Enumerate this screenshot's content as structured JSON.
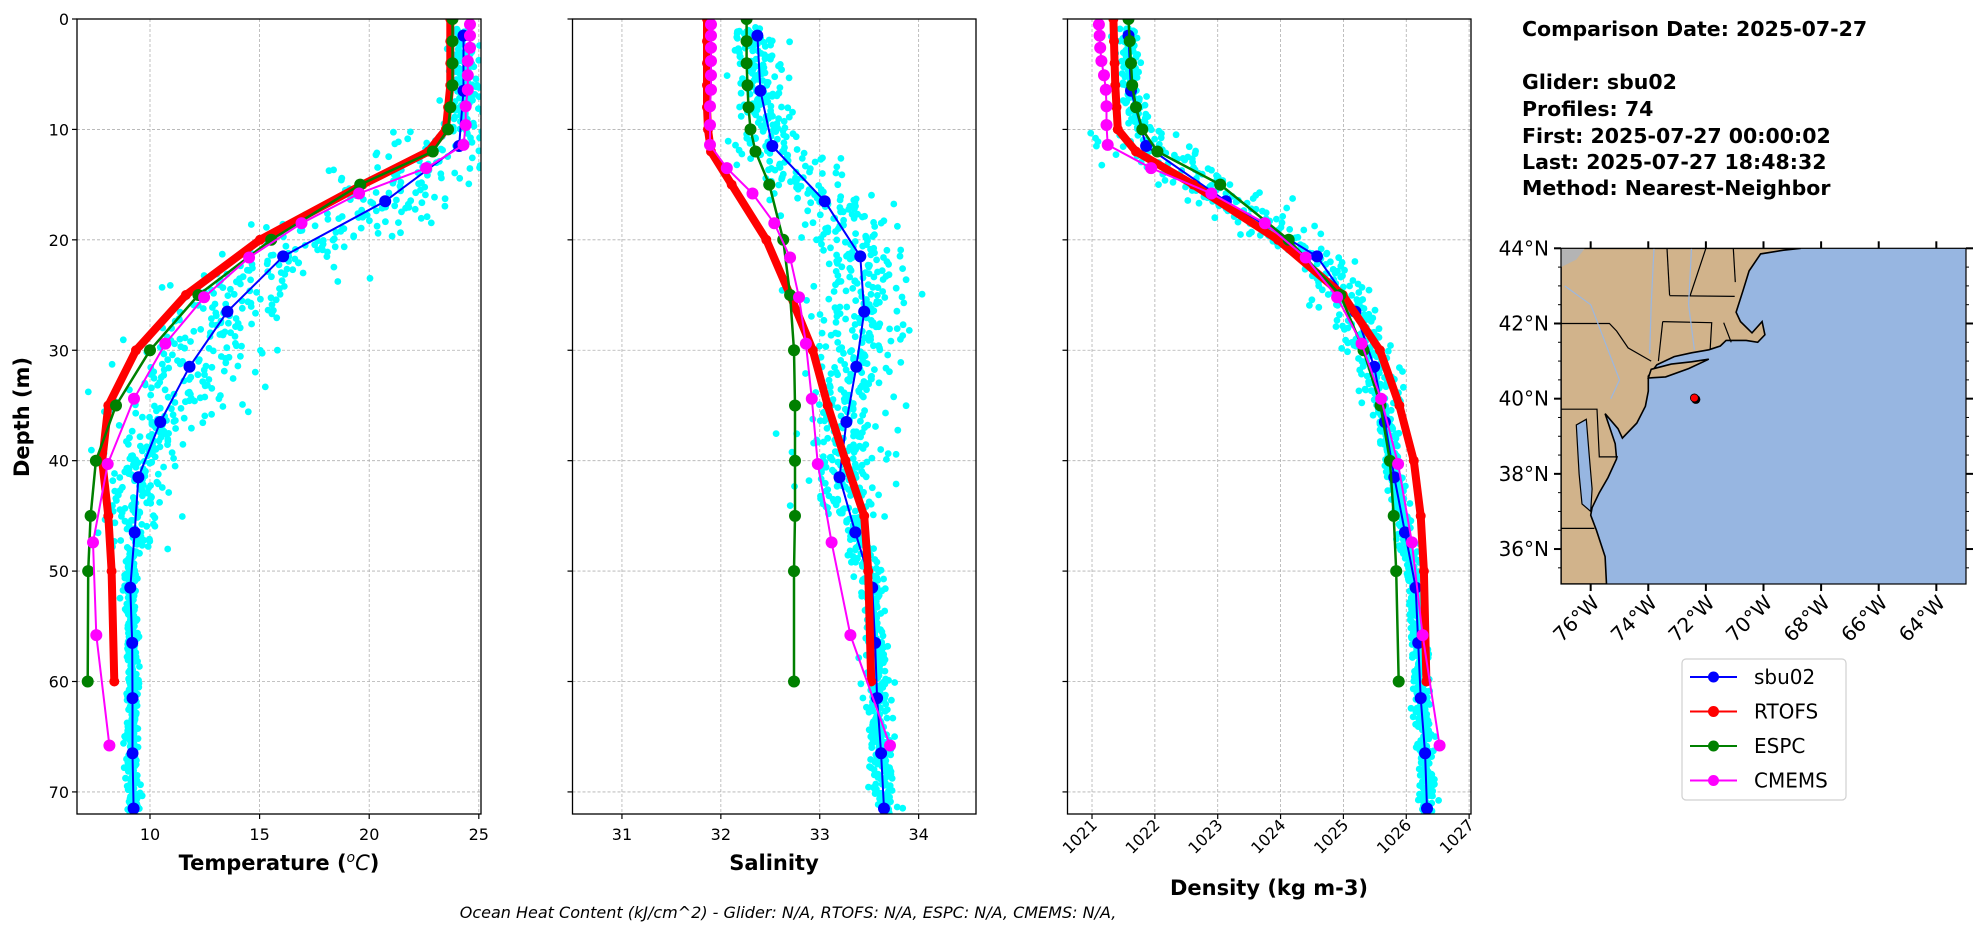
{
  "info": {
    "comparison_date": "Comparison Date: 2025-07-27",
    "glider": "Glider: sbu02",
    "profiles": "Profiles: 74",
    "first": "First: 2025-07-27 00:00:02",
    "last": "Last: 2025-07-27 18:48:32",
    "method": "Method: Nearest-Neighbor"
  },
  "footer": "Ocean Heat Content (kJ/cm^2) - Glider: N/A,  RTOFS: N/A,  ESPC: N/A,  CMEMS: N/A,",
  "legend": {
    "placement": "below map",
    "entries": [
      {
        "label": "sbu02",
        "color": "#0000ff"
      },
      {
        "label": "RTOFS",
        "color": "#ff0000"
      },
      {
        "label": "ESPC",
        "color": "#008000"
      },
      {
        "label": "CMEMS",
        "color": "#ff00ff"
      }
    ]
  },
  "colors": {
    "raw_glider_scatter": "#00ffff",
    "ocean": "#97b6e1",
    "land": "#d1b38b",
    "glider_marker": "#ff0000"
  },
  "chart_data": [
    {
      "type": "line",
      "xlabel_prefix": "Temperature (",
      "xlabel_sup": "o",
      "xlabel_unit": "C",
      "xlabel_suffix": ")",
      "ylabel": "Depth (m)",
      "xlim": [
        6.67,
        25.1
      ],
      "ylim": [
        72,
        0
      ],
      "xticks": [
        10,
        15,
        20,
        25
      ],
      "yticks": [
        0,
        10,
        20,
        30,
        40,
        50,
        60,
        70
      ],
      "show_ytick_labels": true,
      "grid": true,
      "series": [
        {
          "name": "sbu02",
          "color": "#0000ff",
          "depth": [
            1.5,
            6.5,
            11.5,
            16.5,
            21.5,
            26.5,
            31.5,
            36.5,
            41.5,
            46.5,
            51.5,
            56.5,
            61.5,
            66.5,
            71.5
          ],
          "values": [
            24.3,
            24.3,
            24.1,
            20.73,
            16.07,
            13.53,
            11.8,
            10.47,
            9.47,
            9.3,
            9.1,
            9.19,
            9.2,
            9.2,
            9.25
          ]
        },
        {
          "name": "RTOFS",
          "color": "#ff0000",
          "depth": [
            0,
            2,
            4,
            6,
            8,
            10,
            12,
            15,
            20,
            25,
            30,
            35,
            40,
            45,
            50,
            60
          ],
          "values": [
            23.7,
            23.7,
            23.7,
            23.7,
            23.6,
            23.5,
            22.7,
            19.7,
            15.02,
            11.64,
            9.36,
            8.1,
            7.82,
            8.1,
            8.25,
            8.37
          ]
        },
        {
          "name": "ESPC",
          "color": "#008000",
          "depth": [
            0,
            2,
            4,
            6,
            8,
            10,
            12,
            15,
            20,
            25,
            30,
            35,
            40,
            45,
            50,
            60
          ],
          "values": [
            23.8,
            23.8,
            23.8,
            23.8,
            23.7,
            23.6,
            22.9,
            19.59,
            15.53,
            12.21,
            10.0,
            8.45,
            7.53,
            7.29,
            7.18,
            7.16
          ]
        },
        {
          "name": "CMEMS",
          "color": "#ff00ff",
          "depth": [
            0.5,
            1.5,
            2.6,
            3.8,
            5.1,
            6.4,
            7.9,
            9.6,
            11.4,
            13.5,
            15.8,
            18.5,
            21.6,
            25.2,
            29.4,
            34.4,
            40.3,
            47.4,
            55.8,
            65.8
          ],
          "values": [
            24.6,
            24.6,
            24.6,
            24.5,
            24.5,
            24.5,
            24.4,
            24.4,
            24.3,
            22.6,
            19.54,
            16.91,
            14.52,
            12.47,
            10.7,
            9.27,
            8.07,
            7.4,
            7.55,
            8.15
          ]
        }
      ]
    },
    {
      "type": "line",
      "xlabel": "Salinity",
      "xlim": [
        30.5,
        34.58
      ],
      "ylim": [
        72,
        0
      ],
      "xticks": [
        31,
        32,
        33,
        34
      ],
      "yticks": [
        0,
        10,
        20,
        30,
        40,
        50,
        60,
        70
      ],
      "show_ytick_labels": false,
      "grid": true,
      "series": [
        {
          "name": "sbu02",
          "color": "#0000ff",
          "depth": [
            1.5,
            6.5,
            11.5,
            16.5,
            21.5,
            26.5,
            31.5,
            36.5,
            41.5,
            46.5,
            51.5,
            56.5,
            61.5,
            66.5,
            71.5
          ],
          "values": [
            32.37,
            32.4,
            32.52,
            33.05,
            33.41,
            33.45,
            33.37,
            33.27,
            33.2,
            33.36,
            33.53,
            33.56,
            33.58,
            33.62,
            33.65
          ]
        },
        {
          "name": "RTOFS",
          "color": "#ff0000",
          "depth": [
            0,
            2,
            4,
            6,
            8,
            10,
            12,
            15,
            20,
            25,
            30,
            35,
            40,
            45,
            50,
            60
          ],
          "values": [
            31.86,
            31.86,
            31.86,
            31.86,
            31.86,
            31.87,
            31.9,
            32.11,
            32.46,
            32.7,
            32.93,
            33.08,
            33.26,
            33.45,
            33.49,
            33.52
          ]
        },
        {
          "name": "ESPC",
          "color": "#008000",
          "depth": [
            0,
            2,
            4,
            6,
            8,
            10,
            12,
            15,
            20,
            25,
            30,
            35,
            40,
            45,
            50,
            60
          ],
          "values": [
            32.26,
            32.26,
            32.26,
            32.27,
            32.28,
            32.3,
            32.35,
            32.49,
            32.63,
            32.7,
            32.74,
            32.75,
            32.75,
            32.75,
            32.74,
            32.74
          ]
        },
        {
          "name": "CMEMS",
          "color": "#ff00ff",
          "depth": [
            0.5,
            1.5,
            2.6,
            3.8,
            5.1,
            6.4,
            7.9,
            9.6,
            11.4,
            13.5,
            15.8,
            18.5,
            21.6,
            25.2,
            29.4,
            34.4,
            40.3,
            47.4,
            55.8,
            65.8
          ],
          "values": [
            31.9,
            31.9,
            31.9,
            31.9,
            31.9,
            31.9,
            31.89,
            31.89,
            31.89,
            32.06,
            32.32,
            32.54,
            32.7,
            32.79,
            32.86,
            32.92,
            32.98,
            33.12,
            33.31,
            33.71
          ]
        }
      ]
    },
    {
      "type": "line",
      "xlabel": "Density (kg m-3)",
      "xlim": [
        1020.61,
        1027.03
      ],
      "ylim": [
        72,
        0
      ],
      "xticks": [
        1021,
        1022,
        1023,
        1024,
        1025,
        1026,
        1027
      ],
      "xtick_rotation": 45,
      "yticks": [
        0,
        10,
        20,
        30,
        40,
        50,
        60,
        70
      ],
      "show_ytick_labels": false,
      "grid": true,
      "series": [
        {
          "name": "sbu02",
          "color": "#0000ff",
          "depth": [
            1.5,
            6.5,
            11.5,
            16.5,
            21.5,
            26.5,
            31.5,
            36.5,
            41.5,
            46.5,
            51.5,
            56.5,
            61.5,
            66.5,
            71.5
          ],
          "values": [
            1021.58,
            1021.62,
            1021.86,
            1023.13,
            1024.58,
            1025.19,
            1025.49,
            1025.66,
            1025.81,
            1025.98,
            1026.15,
            1026.19,
            1026.23,
            1026.3,
            1026.33
          ]
        },
        {
          "name": "RTOFS",
          "color": "#ff0000",
          "depth": [
            0,
            2,
            4,
            6,
            8,
            10,
            12,
            15,
            20,
            25,
            30,
            35,
            40,
            45,
            50,
            60
          ],
          "values": [
            1021.34,
            1021.35,
            1021.36,
            1021.37,
            1021.39,
            1021.41,
            1021.7,
            1022.61,
            1023.96,
            1024.99,
            1025.58,
            1025.89,
            1026.12,
            1026.23,
            1026.28,
            1026.32
          ]
        },
        {
          "name": "ESPC",
          "color": "#008000",
          "depth": [
            0,
            2,
            4,
            6,
            8,
            10,
            12,
            15,
            20,
            25,
            30,
            35,
            40,
            45,
            50,
            60
          ],
          "values": [
            1021.58,
            1021.6,
            1021.62,
            1021.64,
            1021.7,
            1021.8,
            1022.04,
            1023.04,
            1024.13,
            1024.95,
            1025.32,
            1025.59,
            1025.74,
            1025.8,
            1025.84,
            1025.88
          ]
        },
        {
          "name": "CMEMS",
          "color": "#ff00ff",
          "depth": [
            0.5,
            1.5,
            2.6,
            3.8,
            5.1,
            6.4,
            7.9,
            9.6,
            11.4,
            13.5,
            15.8,
            18.5,
            21.6,
            25.2,
            29.4,
            34.4,
            40.3,
            47.4,
            55.8,
            65.8
          ],
          "values": [
            1021.11,
            1021.12,
            1021.13,
            1021.15,
            1021.19,
            1021.22,
            1021.23,
            1021.23,
            1021.25,
            1021.94,
            1022.9,
            1023.75,
            1024.4,
            1024.9,
            1025.29,
            1025.6,
            1025.87,
            1026.09,
            1026.26,
            1026.53
          ]
        }
      ]
    },
    {
      "type": "map",
      "lon_range": [
        -77.03,
        -62.97
      ],
      "lat_range": [
        35.07,
        44.0
      ],
      "lat_ticks": [
        44,
        42,
        40,
        38,
        36
      ],
      "lat_tick_labels": [
        "44°N",
        "42°N",
        "40°N",
        "38°N",
        "36°N"
      ],
      "lon_ticks": [
        -76,
        -74,
        -72,
        -70,
        -68,
        -66,
        -64
      ],
      "lon_tick_labels": [
        "76°W",
        "74°W",
        "72°W",
        "70°W",
        "68°W",
        "66°W",
        "64°W"
      ],
      "glider_position": {
        "lat": 40.02,
        "lon": -72.4
      }
    }
  ]
}
